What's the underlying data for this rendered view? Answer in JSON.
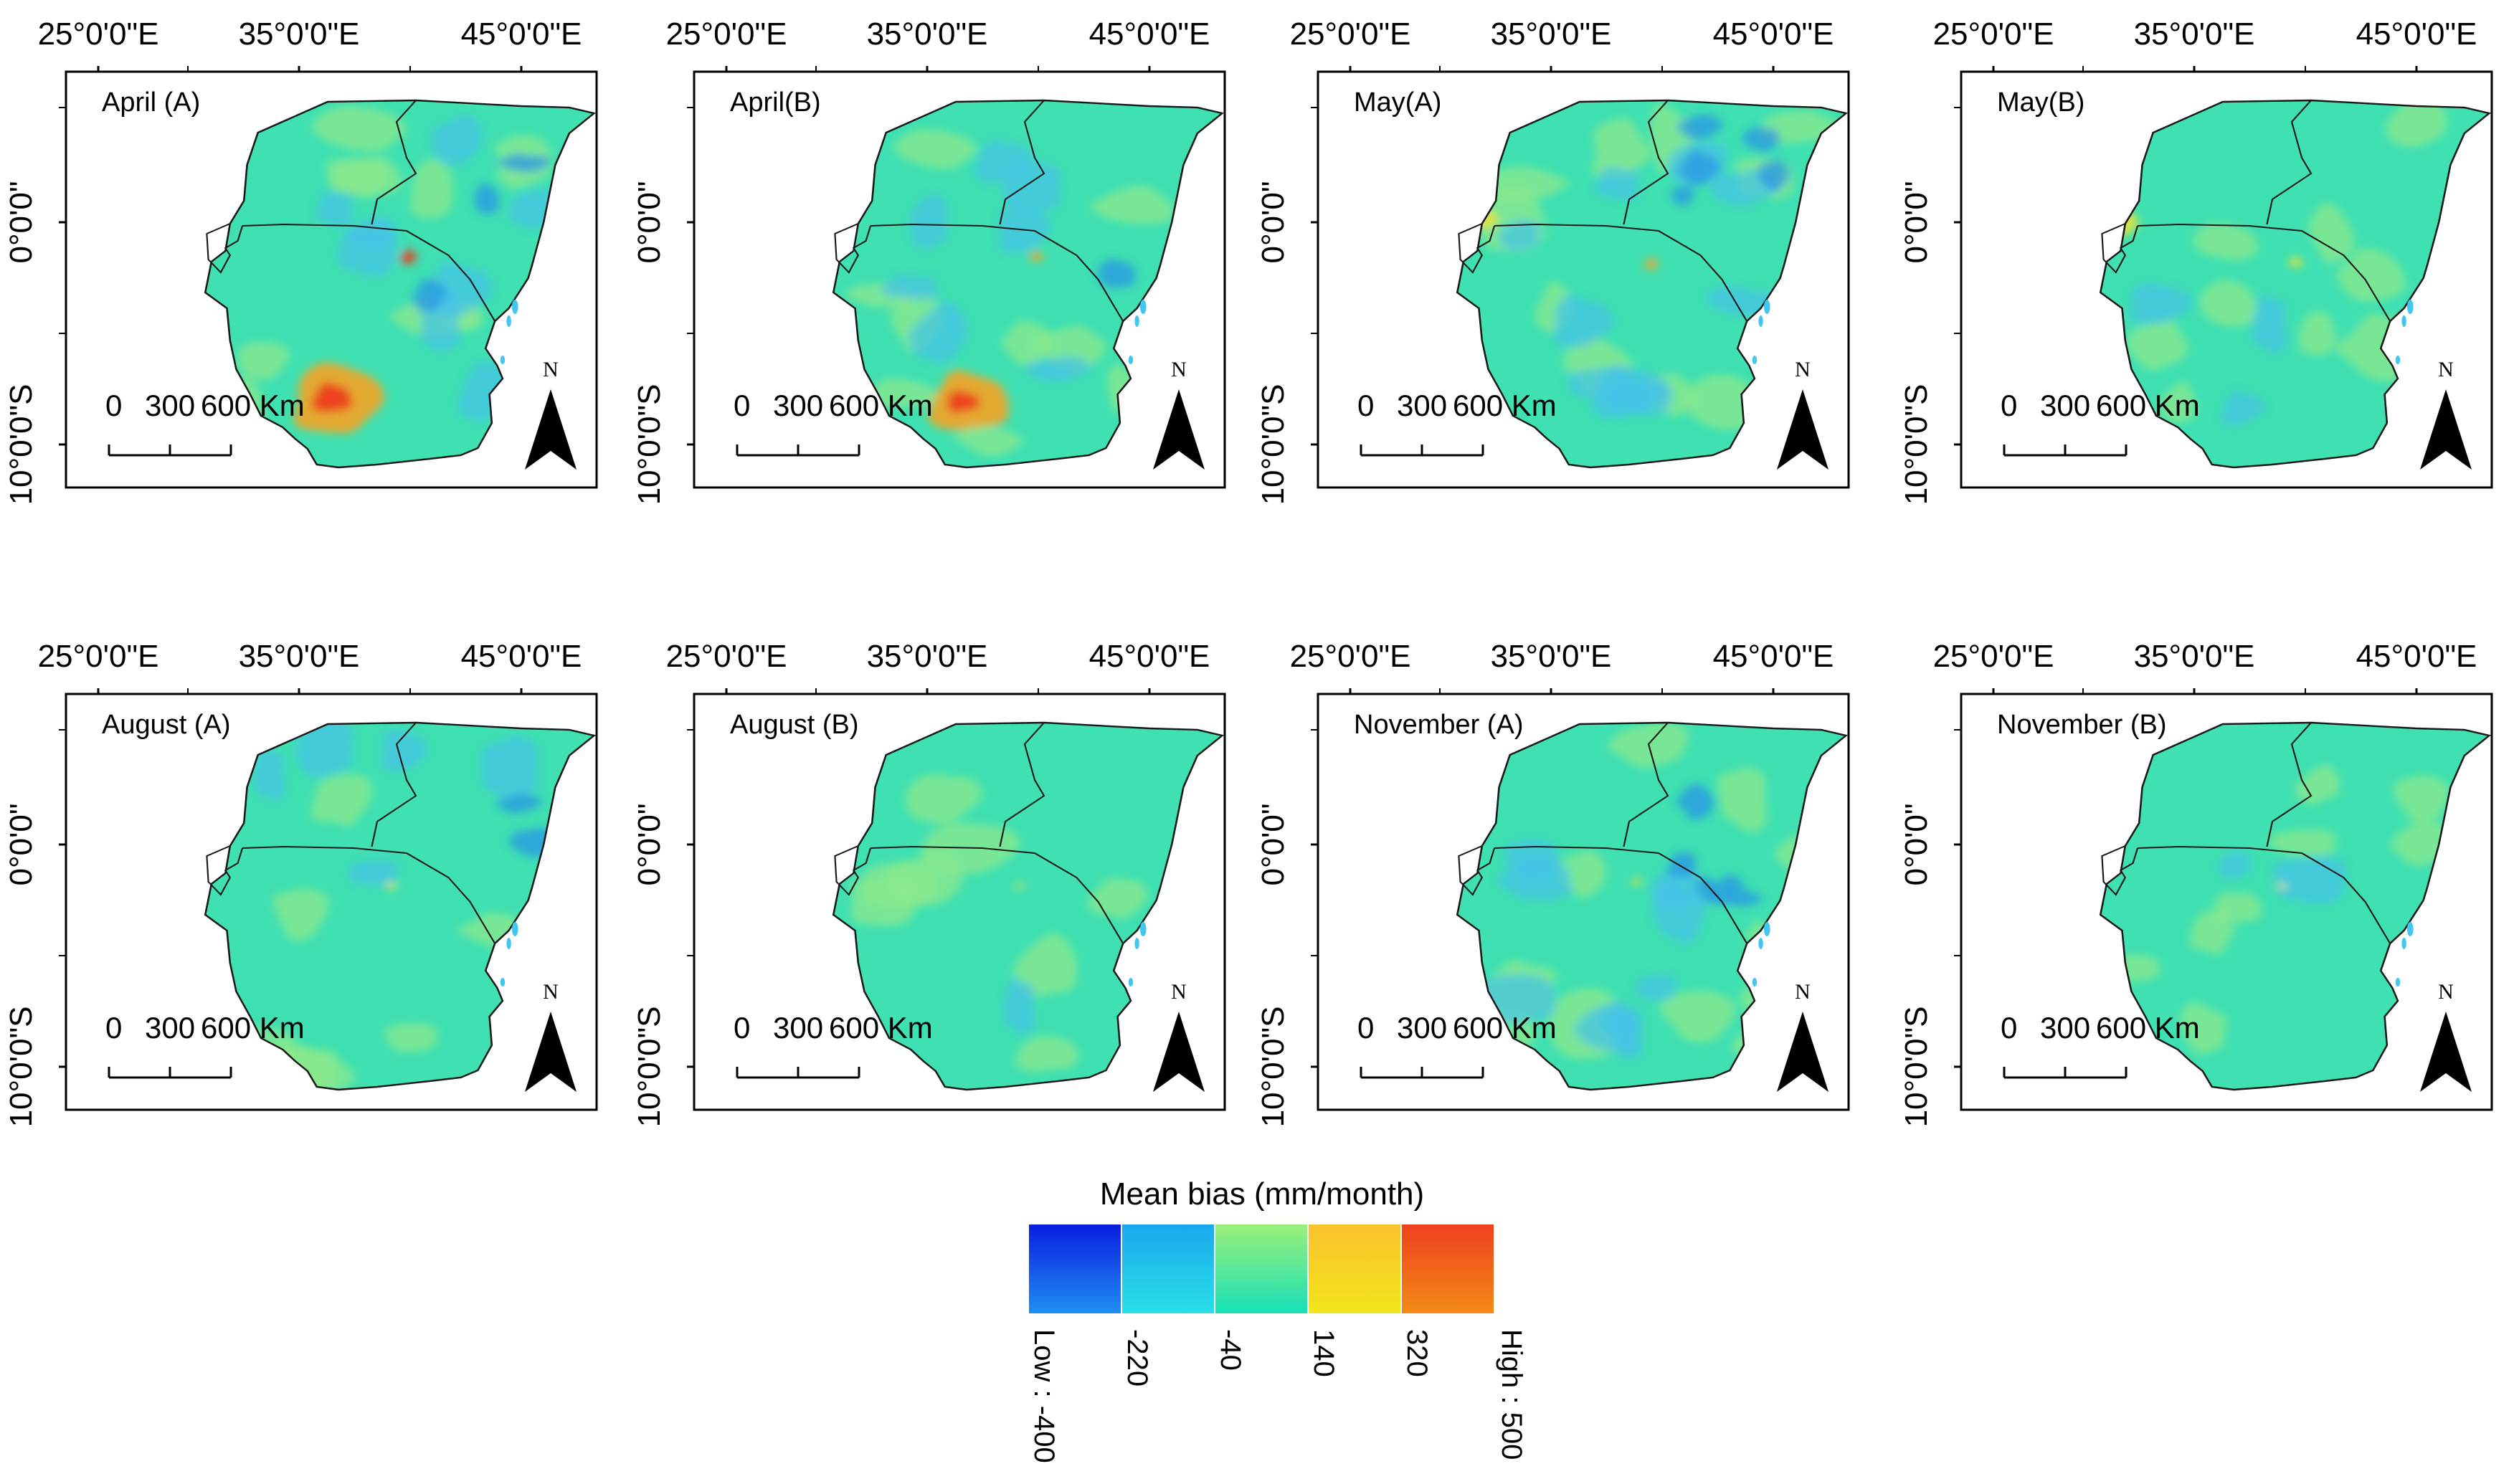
{
  "figure": {
    "coordinate_labels": {
      "lon": [
        "25°0'0\"E",
        "35°0'0\"E",
        "45°0'0\"E"
      ],
      "lat": [
        "0°0'0\"",
        "10°0'0\"S"
      ]
    },
    "scale_bar": {
      "tick_labels": [
        "0",
        "300",
        "600 Km"
      ]
    },
    "north_arrow": {
      "label": "N"
    },
    "panels": [
      {
        "title": "April (A)"
      },
      {
        "title": "April(B)"
      },
      {
        "title": "May(A)"
      },
      {
        "title": "May(B)"
      },
      {
        "title": "August (A)"
      },
      {
        "title": "August (B)"
      },
      {
        "title": "November (A)"
      },
      {
        "title": "November (B)"
      }
    ],
    "legend": {
      "title": "Mean bias (mm/month)",
      "break_labels": [
        "Low : -400",
        "-220",
        "-40",
        "140",
        "320",
        "High : 500"
      ],
      "class_colors": [
        [
          "#0a1de0",
          "#1f8ef2"
        ],
        [
          "#1aa8ef",
          "#29e0e6"
        ],
        [
          "#9cf07a",
          "#16e0b8"
        ],
        [
          "#f9c22d",
          "#f1e51b"
        ],
        [
          "#f0401e",
          "#f28a18"
        ]
      ]
    },
    "colors": {
      "land_base": "#3fe0b2",
      "land_green": "#8ee88c",
      "land_blue": "#46c2ea",
      "land_deep_blue": "#2a95e6",
      "hot_yellow": "#e8e23a",
      "hot_orange": "#f5a425",
      "hot_red": "#ee3a1c",
      "water": "#42c8f0"
    }
  }
}
